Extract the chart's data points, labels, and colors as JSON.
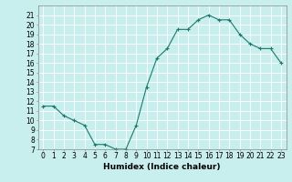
{
  "x": [
    0,
    1,
    2,
    3,
    4,
    5,
    6,
    7,
    8,
    9,
    10,
    11,
    12,
    13,
    14,
    15,
    16,
    17,
    18,
    19,
    20,
    21,
    22,
    23
  ],
  "y": [
    11.5,
    11.5,
    10.5,
    10.0,
    9.5,
    7.5,
    7.5,
    7.0,
    7.0,
    9.5,
    13.5,
    16.5,
    17.5,
    19.5,
    19.5,
    20.5,
    21.0,
    20.5,
    20.5,
    19.0,
    18.0,
    17.5,
    17.5,
    16.0
  ],
  "line_color": "#1a7a6e",
  "marker": "+",
  "marker_size": 3,
  "background_color": "#c8eeee",
  "grid_color": "#ffffff",
  "xlabel": "Humidex (Indice chaleur)",
  "ylim": [
    7,
    22
  ],
  "xlim": [
    -0.5,
    23.5
  ],
  "yticks": [
    7,
    8,
    9,
    10,
    11,
    12,
    13,
    14,
    15,
    16,
    17,
    18,
    19,
    20,
    21
  ],
  "xticks": [
    0,
    1,
    2,
    3,
    4,
    5,
    6,
    7,
    8,
    9,
    10,
    11,
    12,
    13,
    14,
    15,
    16,
    17,
    18,
    19,
    20,
    21,
    22,
    23
  ],
  "tick_fontsize": 5.5,
  "label_fontsize": 6.5
}
